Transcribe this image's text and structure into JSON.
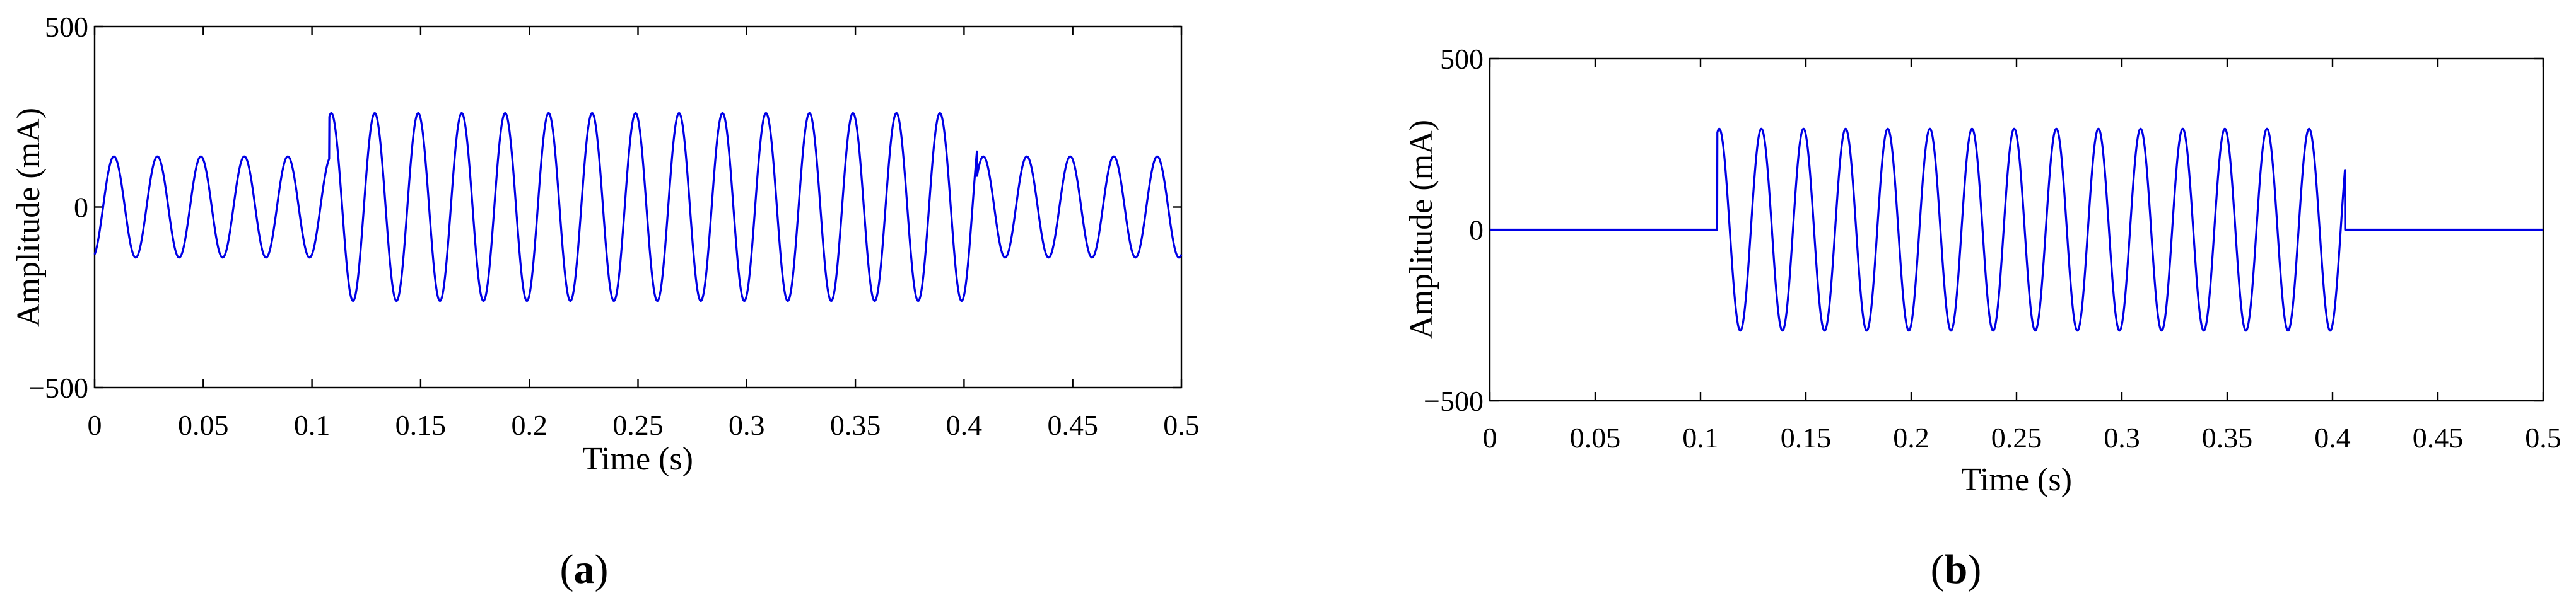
{
  "chart_data": [
    {
      "type": "line",
      "panel_label": "a",
      "xlabel": "Time (s)",
      "ylabel": "Amplitude (mA)",
      "xlim": [
        0,
        0.5
      ],
      "ylim": [
        -500,
        500
      ],
      "xticks": [
        "0",
        "0.05",
        "0.1",
        "0.15",
        "0.2",
        "0.25",
        "0.3",
        "0.35",
        "0.4",
        "0.45",
        "0.5"
      ],
      "yticks": [
        "−500",
        "0",
        "500"
      ],
      "grid": false,
      "series": [
        {
          "color": "#0000e6",
          "signal": "sinusoid",
          "frequency_hz": 50,
          "segments": [
            {
              "t_start": 0.0,
              "t_end": 0.108,
              "amplitude": 140
            },
            {
              "t_start": 0.108,
              "t_end": 0.406,
              "amplitude": 260
            },
            {
              "t_start": 0.406,
              "t_end": 0.5,
              "amplitude": 140
            }
          ]
        }
      ]
    },
    {
      "type": "line",
      "panel_label": "b",
      "xlabel": "Time (s)",
      "ylabel": "Amplitude (mA)",
      "xlim": [
        0,
        0.5
      ],
      "ylim": [
        -500,
        500
      ],
      "xticks": [
        "0",
        "0.05",
        "0.1",
        "0.15",
        "0.2",
        "0.25",
        "0.3",
        "0.35",
        "0.4",
        "0.45",
        "0.5"
      ],
      "yticks": [
        "−500",
        "0",
        "500"
      ],
      "grid": false,
      "series": [
        {
          "color": "#0000e6",
          "signal": "sinusoid",
          "frequency_hz": 50,
          "segments": [
            {
              "t_start": 0.0,
              "t_end": 0.108,
              "amplitude": 0
            },
            {
              "t_start": 0.108,
              "t_end": 0.406,
              "amplitude": 295
            },
            {
              "t_start": 0.406,
              "t_end": 0.5,
              "amplitude": 0
            }
          ]
        }
      ]
    }
  ]
}
